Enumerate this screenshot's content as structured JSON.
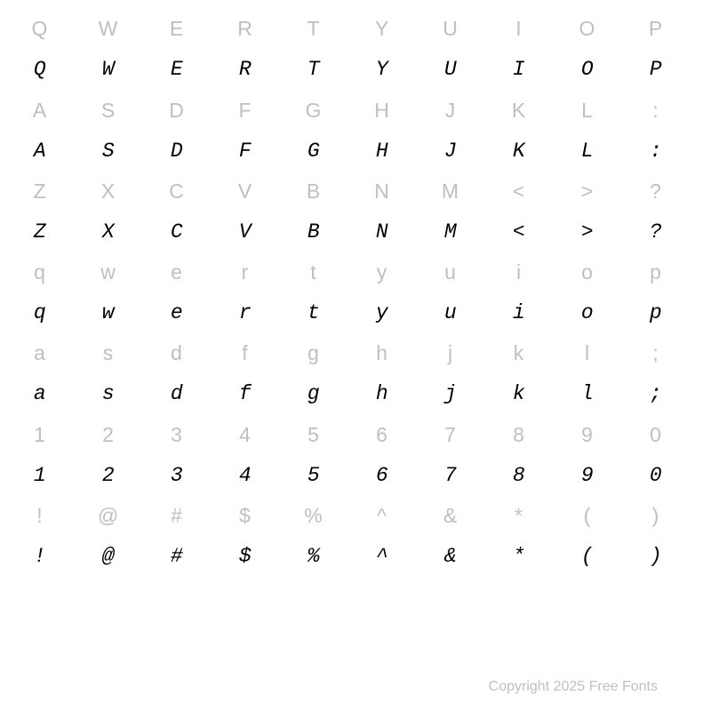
{
  "specimen": {
    "reference_color": "#bfbfbf",
    "glyph_color": "#000000",
    "background_color": "#ffffff",
    "reference_font_family": "sans-serif",
    "glyph_font_family": "monospace-slab-italic",
    "font_size_pt": 17,
    "columns": 10,
    "rows": [
      {
        "type": "ref",
        "chars": [
          "Q",
          "W",
          "E",
          "R",
          "T",
          "Y",
          "U",
          "I",
          "O",
          "P"
        ]
      },
      {
        "type": "glyph",
        "chars": [
          "Q",
          "W",
          "E",
          "R",
          "T",
          "Y",
          "U",
          "I",
          "O",
          "P"
        ]
      },
      {
        "type": "ref",
        "chars": [
          "A",
          "S",
          "D",
          "F",
          "G",
          "H",
          "J",
          "K",
          "L",
          ":"
        ]
      },
      {
        "type": "glyph",
        "chars": [
          "A",
          "S",
          "D",
          "F",
          "G",
          "H",
          "J",
          "K",
          "L",
          ":"
        ]
      },
      {
        "type": "ref",
        "chars": [
          "Z",
          "X",
          "C",
          "V",
          "B",
          "N",
          "M",
          "<",
          ">",
          "?"
        ]
      },
      {
        "type": "glyph",
        "chars": [
          "Z",
          "X",
          "C",
          "V",
          "B",
          "N",
          "M",
          "<",
          ">",
          "?"
        ]
      },
      {
        "type": "ref",
        "chars": [
          "q",
          "w",
          "e",
          "r",
          "t",
          "y",
          "u",
          "i",
          "o",
          "p"
        ]
      },
      {
        "type": "glyph",
        "chars": [
          "q",
          "w",
          "e",
          "r",
          "t",
          "y",
          "u",
          "i",
          "o",
          "p"
        ]
      },
      {
        "type": "ref",
        "chars": [
          "a",
          "s",
          "d",
          "f",
          "g",
          "h",
          "j",
          "k",
          "l",
          ";"
        ]
      },
      {
        "type": "glyph",
        "chars": [
          "a",
          "s",
          "d",
          "f",
          "g",
          "h",
          "j",
          "k",
          "l",
          ";"
        ]
      },
      {
        "type": "ref",
        "chars": [
          "1",
          "2",
          "3",
          "4",
          "5",
          "6",
          "7",
          "8",
          "9",
          "0"
        ]
      },
      {
        "type": "glyph",
        "chars": [
          "1",
          "2",
          "3",
          "4",
          "5",
          "6",
          "7",
          "8",
          "9",
          "0"
        ]
      },
      {
        "type": "ref",
        "chars": [
          "!",
          "@",
          "#",
          "$",
          "%",
          "^",
          "&",
          "*",
          "(",
          ")"
        ]
      },
      {
        "type": "glyph",
        "chars": [
          "!",
          "@",
          "#",
          "$",
          "%",
          "^",
          "&",
          "*",
          "(",
          ")"
        ]
      }
    ]
  },
  "footer": {
    "text": "Copyright 2025 Free Fonts",
    "color": "#bfbfbf",
    "font_size_pt": 12
  }
}
